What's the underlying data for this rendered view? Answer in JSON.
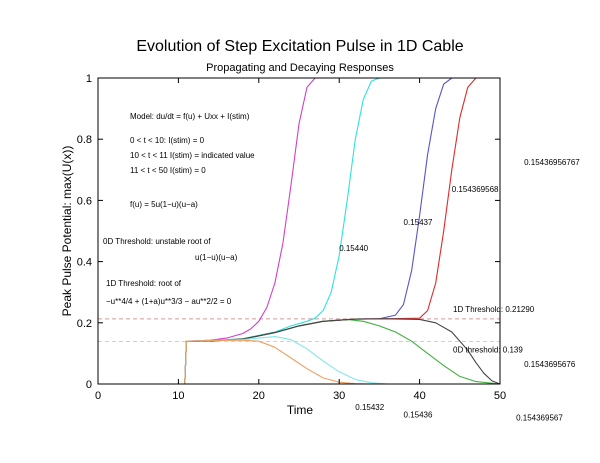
{
  "chart_data": {
    "type": "line",
    "title": "Evolution of Step Excitation Pulse in 1D Cable",
    "subtitle": "Propagating and Decaying Responses",
    "xlabel": "Time",
    "ylabel": "Peak Pulse Potential:  max(U(x))",
    "xlim": [
      0,
      50
    ],
    "ylim": [
      0,
      1
    ],
    "x_ticks": [
      "0",
      "10",
      "20",
      "30",
      "40",
      "50"
    ],
    "y_ticks": [
      "0",
      "0.2",
      "0.4",
      "0.6",
      "0.8",
      "1"
    ],
    "grid": false,
    "annotations": [
      "Model:  du/dt = f(u) + Uxx + I(stim)",
      "0 < t < 10:  I(stim) = 0",
      "10 < t < 11  I(stim) = indicated value",
      "11 < t < 50  I(stim) = 0",
      "f(u) = 5u(1−u)(u−a)",
      "0D Threshold:  unstable root of",
      "u(1−u)(u−a)",
      "1D Threshold:  root of",
      "−u**4/4 + (1+a)u**3/3 − au**2/2 = 0"
    ],
    "reference_lines": [
      {
        "label": "1D Threshold:  0.21290",
        "y": 0.2129,
        "color": "#d49a9a"
      },
      {
        "label": "0D threshold:  0.139",
        "y": 0.139,
        "color": "#c8e09a"
      }
    ],
    "series": [
      {
        "name": "0.15440",
        "color": "#d040c8",
        "label_xy": [
          30,
          0.435
        ],
        "x": [
          0,
          10.8,
          11,
          14,
          16,
          18,
          19,
          20,
          21,
          22,
          23,
          24,
          25,
          26,
          27,
          28,
          50
        ],
        "y": [
          0,
          0,
          0.14,
          0.143,
          0.15,
          0.165,
          0.18,
          0.205,
          0.25,
          0.33,
          0.46,
          0.65,
          0.85,
          0.97,
          1.0,
          1.0,
          1.0
        ]
      },
      {
        "name": "0.15437",
        "color": "#30e0e0",
        "label_xy": [
          38,
          0.52
        ],
        "x": [
          0,
          10.8,
          11,
          14,
          18,
          22,
          24,
          26,
          27,
          28,
          29,
          30,
          31,
          32,
          33,
          34,
          35,
          50
        ],
        "y": [
          0,
          0,
          0.14,
          0.142,
          0.148,
          0.17,
          0.19,
          0.205,
          0.215,
          0.24,
          0.3,
          0.42,
          0.6,
          0.8,
          0.93,
          0.99,
          1.0,
          1.0
        ]
      },
      {
        "name": "0.154369568",
        "color": "#5555cc",
        "label_xy": [
          44,
          0.628
        ],
        "x": [
          0,
          10.8,
          11,
          14,
          18,
          22,
          25,
          28,
          32,
          35,
          37,
          38,
          39,
          40,
          41,
          42,
          43,
          44,
          50
        ],
        "y": [
          0,
          0,
          0.14,
          0.141,
          0.147,
          0.168,
          0.19,
          0.205,
          0.212,
          0.213,
          0.225,
          0.26,
          0.37,
          0.55,
          0.75,
          0.9,
          0.98,
          1.0,
          1.0
        ]
      },
      {
        "name": "0.15436956767",
        "color": "#e02a2a",
        "label_xy": [
          53,
          0.715
        ],
        "x": [
          0,
          10.8,
          11,
          14,
          18,
          22,
          25,
          28,
          32,
          36,
          40,
          41,
          42,
          43,
          44,
          45,
          46,
          47,
          50
        ],
        "y": [
          0,
          0,
          0.14,
          0.141,
          0.147,
          0.168,
          0.19,
          0.205,
          0.212,
          0.213,
          0.215,
          0.24,
          0.33,
          0.5,
          0.7,
          0.87,
          0.97,
          1.0,
          1.0
        ]
      },
      {
        "name": "0.1543695676",
        "color": "#40b040",
        "label_xy": [
          53,
          0.055
        ],
        "x": [
          0,
          10.8,
          11,
          14,
          18,
          22,
          25,
          28,
          31,
          33,
          35,
          37,
          39,
          41,
          43,
          45,
          47,
          50
        ],
        "y": [
          0,
          0,
          0.14,
          0.141,
          0.147,
          0.168,
          0.19,
          0.205,
          0.211,
          0.205,
          0.19,
          0.17,
          0.14,
          0.1,
          0.06,
          0.025,
          0.008,
          0
        ]
      },
      {
        "name": "0.154369567",
        "color": "#444444",
        "label_xy": [
          52,
          -0.12
        ],
        "x": [
          0,
          10.8,
          11,
          14,
          18,
          22,
          25,
          28,
          32,
          36,
          40,
          42,
          44,
          46,
          47,
          48,
          49,
          50
        ],
        "y": [
          0,
          0,
          0.14,
          0.141,
          0.147,
          0.168,
          0.19,
          0.205,
          0.212,
          0.213,
          0.211,
          0.2,
          0.17,
          0.11,
          0.07,
          0.035,
          0.01,
          0
        ]
      },
      {
        "name": "0.15436",
        "color": "#80e8e8",
        "label_xy": [
          38,
          -0.11
        ],
        "x": [
          0,
          10.8,
          11,
          14,
          18,
          20,
          22,
          24,
          26,
          28,
          30,
          32,
          34,
          36,
          50
        ],
        "y": [
          0,
          0,
          0.14,
          0.142,
          0.145,
          0.15,
          0.155,
          0.145,
          0.115,
          0.075,
          0.04,
          0.015,
          0.004,
          0,
          0
        ]
      },
      {
        "name": "0.15432",
        "color": "#f0a060",
        "label_xy": [
          32,
          -0.085
        ],
        "x": [
          0,
          10.8,
          11,
          14,
          18,
          20,
          22,
          24,
          26,
          28,
          30,
          32,
          34,
          50
        ],
        "y": [
          0,
          0,
          0.14,
          0.142,
          0.143,
          0.14,
          0.12,
          0.085,
          0.05,
          0.02,
          0.006,
          0.001,
          0,
          0
        ]
      }
    ]
  }
}
